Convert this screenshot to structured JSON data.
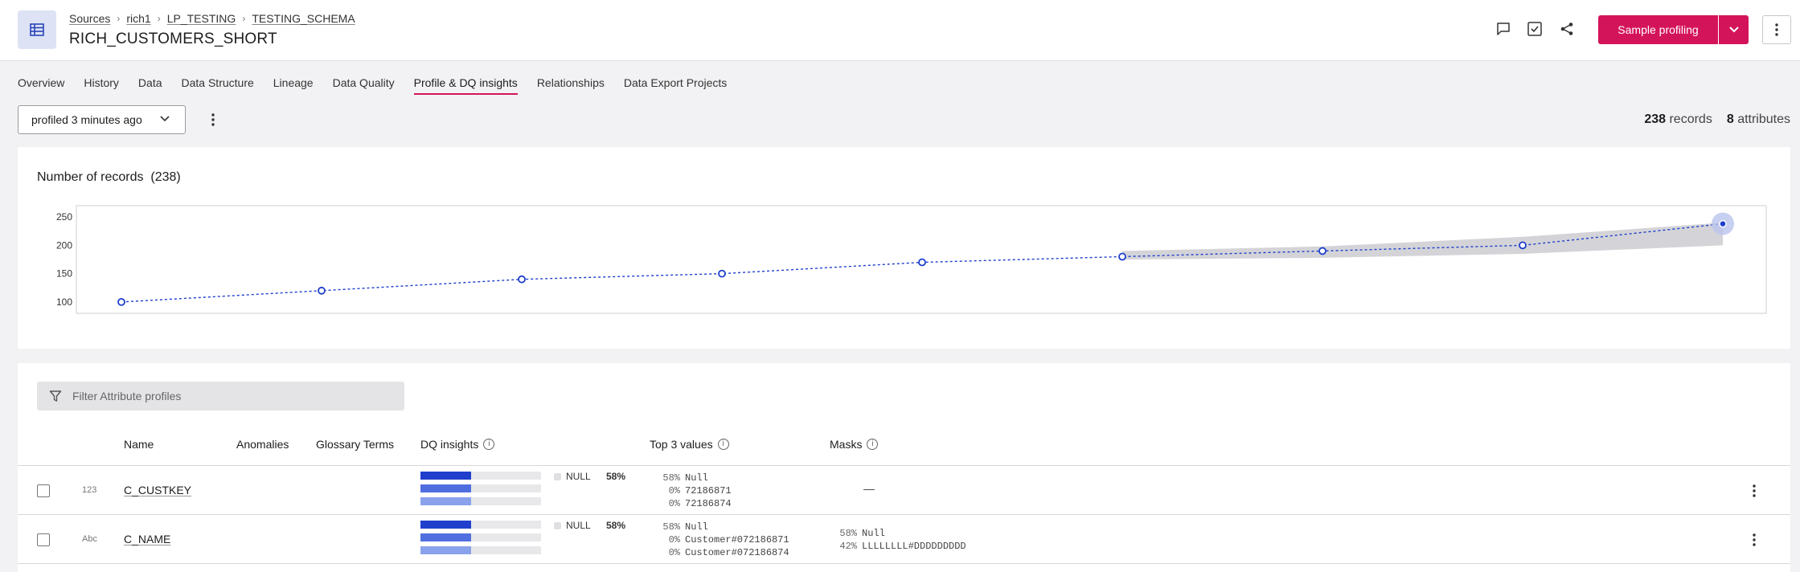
{
  "breadcrumb": [
    "Sources",
    "rich1",
    "LP_TESTING",
    "TESTING_SCHEMA"
  ],
  "title": "RICH_CUSTOMERS_SHORT",
  "actions": {
    "sample_label": "Sample profiling"
  },
  "tabs": [
    {
      "label": "Overview",
      "active": false
    },
    {
      "label": "History",
      "active": false
    },
    {
      "label": "Data",
      "active": false
    },
    {
      "label": "Data Structure",
      "active": false
    },
    {
      "label": "Lineage",
      "active": false
    },
    {
      "label": "Data Quality",
      "active": false
    },
    {
      "label": "Profile & DQ insights",
      "active": true
    },
    {
      "label": "Relationships",
      "active": false
    },
    {
      "label": "Data Export Projects",
      "active": false
    }
  ],
  "toolbar": {
    "profile_selected": "profiled 3 minutes ago",
    "records_count": "238",
    "records_label": "records",
    "attributes_count": "8",
    "attributes_label": "attributes"
  },
  "chart": {
    "title": "Number of records",
    "title_count": "(238)"
  },
  "chart_data": {
    "type": "line",
    "x": [
      1,
      2,
      3,
      4,
      5,
      6,
      7,
      8,
      9
    ],
    "values": [
      100,
      120,
      140,
      150,
      170,
      180,
      190,
      200,
      238
    ],
    "band": {
      "from_index": 5,
      "to_index": 8,
      "lower": [
        175,
        178,
        185,
        200
      ],
      "upper": [
        190,
        198,
        215,
        240
      ]
    },
    "yticks": [
      100,
      150,
      200,
      250
    ],
    "ylim": [
      80,
      270
    ],
    "grid": false,
    "color": "#1f3fcc"
  },
  "filter": {
    "placeholder": "Filter Attribute profiles"
  },
  "columns": {
    "name": "Name",
    "anomalies": "Anomalies",
    "glossary": "Glossary Terms",
    "dq": "DQ insights",
    "top3": "Top 3 values",
    "masks": "Masks"
  },
  "rows": [
    {
      "type": "123",
      "name": "C_CUSTKEY",
      "null_label": "NULL",
      "null_pct": "58%",
      "dq_fractions": [
        0.42,
        0.42,
        0.42
      ],
      "top_values": [
        {
          "pct": "58%",
          "value": "Null"
        },
        {
          "pct": "0%",
          "value": "72186871"
        },
        {
          "pct": "0%",
          "value": "72186874"
        }
      ],
      "masks_empty": "—"
    },
    {
      "type": "Abc",
      "name": "C_NAME",
      "null_label": "NULL",
      "null_pct": "58%",
      "dq_fractions": [
        0.42,
        0.42,
        0.42
      ],
      "top_values": [
        {
          "pct": "58%",
          "value": "Null"
        },
        {
          "pct": "0%",
          "value": "Customer#072186871"
        },
        {
          "pct": "0%",
          "value": "Customer#072186874"
        }
      ],
      "masks": [
        {
          "pct": "58%",
          "value": "Null"
        },
        {
          "pct": "42%",
          "value": "LLLLLLLL#DDDDDDDDD"
        }
      ]
    }
  ],
  "colors": {
    "accent": "#d4145a",
    "bar_dark": "#1f3fcc",
    "bar_mid": "#4f6fe0",
    "bar_light": "#8aa2ec"
  }
}
